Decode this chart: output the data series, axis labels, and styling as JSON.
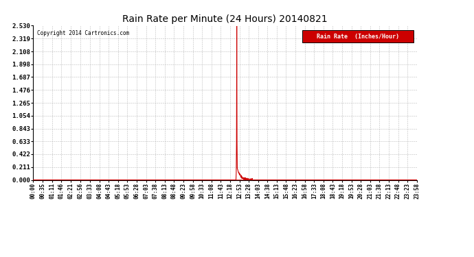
{
  "title": "Rain Rate per Minute (24 Hours) 20140821",
  "ylabel": "Rain Rate  (Inches/Hour)",
  "copyright_text": "Copyright 2014 Cartronics.com",
  "line_color": "#cc0000",
  "background_color": "#ffffff",
  "plot_bg_color": "#ffffff",
  "grid_color": "#aaaaaa",
  "legend_bg_color": "#cc0000",
  "legend_text_color": "#ffffff",
  "yticks": [
    0.0,
    0.211,
    0.422,
    0.633,
    0.843,
    1.054,
    1.265,
    1.476,
    1.687,
    1.898,
    2.108,
    2.319,
    2.53
  ],
  "ylim": [
    0.0,
    2.53
  ],
  "peak_minute": 763,
  "peak_value": 2.53,
  "total_minutes": 1440,
  "label_times": [
    "00:00",
    "00:35",
    "01:11",
    "01:46",
    "02:21",
    "02:56",
    "03:33",
    "04:08",
    "04:43",
    "05:18",
    "05:53",
    "06:28",
    "07:03",
    "07:38",
    "08:13",
    "08:48",
    "09:23",
    "09:58",
    "10:33",
    "11:08",
    "11:43",
    "12:18",
    "12:53",
    "13:28",
    "14:03",
    "14:38",
    "15:13",
    "15:48",
    "16:23",
    "16:58",
    "17:33",
    "18:08",
    "18:43",
    "19:18",
    "19:53",
    "20:28",
    "21:03",
    "21:38",
    "22:13",
    "22:48",
    "23:23",
    "23:58"
  ]
}
